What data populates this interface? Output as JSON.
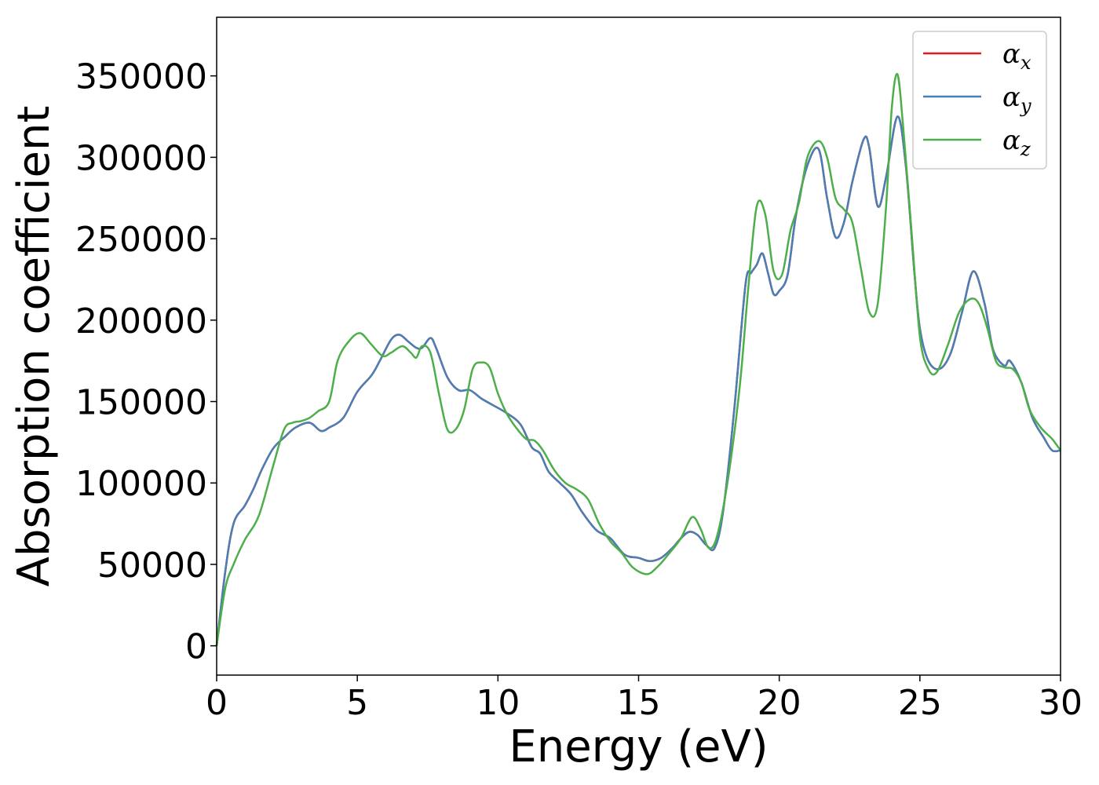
{
  "chart_data": {
    "type": "line",
    "title": "",
    "xlabel": "Energy (eV)",
    "ylabel": "Absorption coefficient",
    "xlim": [
      0,
      30
    ],
    "ylim": [
      -18000,
      386000
    ],
    "xticks": [
      0,
      5,
      10,
      15,
      20,
      25,
      30
    ],
    "yticks": [
      0,
      50000,
      100000,
      150000,
      200000,
      250000,
      300000,
      350000
    ],
    "grid": false,
    "legend_position": "top-right",
    "series": [
      {
        "name": "α_x",
        "legend_base": "α",
        "legend_sub": "x",
        "color": "#e41a1c",
        "x": [
          0,
          0.3,
          0.6,
          1.0,
          1.3,
          1.6,
          2.0,
          2.4,
          2.8,
          3.3,
          3.7,
          4.0,
          4.5,
          5.0,
          5.5,
          5.8,
          6.2,
          6.5,
          6.8,
          7.1,
          7.3,
          7.6,
          7.8,
          8.2,
          8.6,
          9.0,
          9.4,
          9.8,
          10.3,
          10.8,
          11.2,
          11.5,
          11.8,
          12.2,
          12.6,
          13.0,
          13.5,
          14.0,
          14.5,
          15.0,
          15.4,
          15.8,
          16.2,
          16.5,
          16.8,
          17.1,
          17.4,
          17.7,
          18.0,
          18.4,
          18.8,
          19.0,
          19.2,
          19.4,
          19.6,
          19.8,
          20.0,
          20.3,
          20.6,
          21.0,
          21.4,
          21.7,
          22.0,
          22.3,
          22.6,
          23.0,
          23.2,
          23.5,
          23.8,
          24.2,
          24.5,
          24.8,
          25.0,
          25.3,
          25.7,
          26.1,
          26.5,
          26.9,
          27.3,
          27.6,
          28.0,
          28.2,
          28.6,
          29.0,
          29.4,
          29.7,
          30.0
        ],
        "values": [
          0,
          45000,
          75000,
          86000,
          96000,
          108000,
          121000,
          128000,
          134000,
          137000,
          132000,
          134000,
          140000,
          156000,
          166000,
          175000,
          188000,
          191000,
          187000,
          183000,
          183000,
          189000,
          183000,
          165000,
          157000,
          157000,
          152000,
          148000,
          143000,
          136000,
          122000,
          118000,
          107000,
          100000,
          93000,
          82000,
          71000,
          66000,
          56000,
          54000,
          52000,
          54000,
          60000,
          66000,
          70000,
          68000,
          62000,
          60000,
          82000,
          145000,
          222000,
          229000,
          234000,
          241000,
          229000,
          216000,
          218000,
          228000,
          265000,
          295000,
          305000,
          275000,
          251000,
          260000,
          285000,
          311000,
          306000,
          270000,
          288000,
          325000,
          295000,
          230000,
          195000,
          175000,
          170000,
          180000,
          205000,
          230000,
          210000,
          182000,
          172000,
          175000,
          162000,
          140000,
          128000,
          120000,
          120000
        ]
      },
      {
        "name": "α_y",
        "legend_base": "α",
        "legend_sub": "y",
        "color": "#4a7fb5",
        "x": [
          0,
          0.3,
          0.6,
          1.0,
          1.3,
          1.6,
          2.0,
          2.4,
          2.8,
          3.3,
          3.7,
          4.0,
          4.5,
          5.0,
          5.5,
          5.8,
          6.2,
          6.5,
          6.8,
          7.1,
          7.3,
          7.6,
          7.8,
          8.2,
          8.6,
          9.0,
          9.4,
          9.8,
          10.3,
          10.8,
          11.2,
          11.5,
          11.8,
          12.2,
          12.6,
          13.0,
          13.5,
          14.0,
          14.5,
          15.0,
          15.4,
          15.8,
          16.2,
          16.5,
          16.8,
          17.1,
          17.4,
          17.7,
          18.0,
          18.4,
          18.8,
          19.0,
          19.2,
          19.4,
          19.6,
          19.8,
          20.0,
          20.3,
          20.6,
          21.0,
          21.4,
          21.7,
          22.0,
          22.3,
          22.6,
          23.0,
          23.2,
          23.5,
          23.8,
          24.2,
          24.5,
          24.8,
          25.0,
          25.3,
          25.7,
          26.1,
          26.5,
          26.9,
          27.3,
          27.6,
          28.0,
          28.2,
          28.6,
          29.0,
          29.4,
          29.7,
          30.0
        ],
        "values": [
          0,
          45000,
          75000,
          86000,
          96000,
          108000,
          121000,
          128000,
          134000,
          137000,
          132000,
          134000,
          140000,
          156000,
          166000,
          175000,
          188000,
          191000,
          187000,
          183000,
          183000,
          189000,
          183000,
          165000,
          157000,
          157000,
          152000,
          148000,
          143000,
          136000,
          122000,
          118000,
          107000,
          100000,
          93000,
          82000,
          71000,
          66000,
          56000,
          54000,
          52000,
          54000,
          60000,
          66000,
          70000,
          68000,
          62000,
          60000,
          82000,
          145000,
          222000,
          229000,
          234000,
          241000,
          229000,
          216000,
          218000,
          228000,
          265000,
          295000,
          305000,
          275000,
          251000,
          260000,
          285000,
          311000,
          306000,
          270000,
          288000,
          325000,
          295000,
          230000,
          195000,
          175000,
          170000,
          180000,
          205000,
          230000,
          210000,
          182000,
          172000,
          175000,
          162000,
          140000,
          128000,
          120000,
          120000
        ]
      },
      {
        "name": "α_z",
        "legend_base": "α",
        "legend_sub": "z",
        "color": "#4daf4a",
        "x": [
          0,
          0.3,
          0.6,
          1.0,
          1.5,
          2.0,
          2.4,
          2.7,
          3.0,
          3.3,
          3.6,
          4.0,
          4.3,
          4.7,
          5.1,
          5.5,
          5.9,
          6.2,
          6.6,
          6.9,
          7.1,
          7.3,
          7.6,
          7.9,
          8.2,
          8.5,
          8.8,
          9.1,
          9.4,
          9.7,
          10.0,
          10.3,
          10.6,
          11.0,
          11.3,
          11.6,
          12.0,
          12.4,
          12.8,
          13.2,
          13.6,
          14.0,
          14.4,
          14.8,
          15.3,
          15.7,
          16.1,
          16.5,
          16.9,
          17.2,
          17.5,
          17.8,
          18.2,
          18.6,
          18.9,
          19.2,
          19.5,
          19.8,
          20.1,
          20.4,
          20.7,
          21.0,
          21.4,
          21.7,
          22.0,
          22.3,
          22.6,
          22.9,
          23.2,
          23.5,
          23.8,
          24.0,
          24.2,
          24.4,
          24.7,
          25.0,
          25.3,
          25.6,
          26.0,
          26.4,
          26.8,
          27.1,
          27.4,
          27.7,
          28.0,
          28.3,
          28.6,
          28.9,
          29.3,
          29.7,
          30.0
        ],
        "values": [
          0,
          35000,
          50000,
          65000,
          80000,
          110000,
          133000,
          137000,
          138000,
          140000,
          144000,
          150000,
          175000,
          187000,
          192000,
          185000,
          178000,
          180000,
          184000,
          180000,
          177000,
          184000,
          180000,
          155000,
          133000,
          133000,
          145000,
          170000,
          174000,
          171000,
          155000,
          143000,
          135000,
          127000,
          126000,
          120000,
          108000,
          100000,
          96000,
          90000,
          75000,
          64000,
          57000,
          48000,
          44000,
          49000,
          57000,
          66000,
          79000,
          72000,
          60000,
          68000,
          105000,
          160000,
          220000,
          270000,
          265000,
          230000,
          228000,
          255000,
          272000,
          300000,
          310000,
          300000,
          275000,
          268000,
          260000,
          232000,
          205000,
          210000,
          270000,
          330000,
          351000,
          320000,
          255000,
          190000,
          170000,
          168000,
          185000,
          205000,
          213000,
          210000,
          195000,
          175000,
          171000,
          170000,
          162000,
          145000,
          134000,
          127000,
          120000
        ]
      }
    ]
  }
}
